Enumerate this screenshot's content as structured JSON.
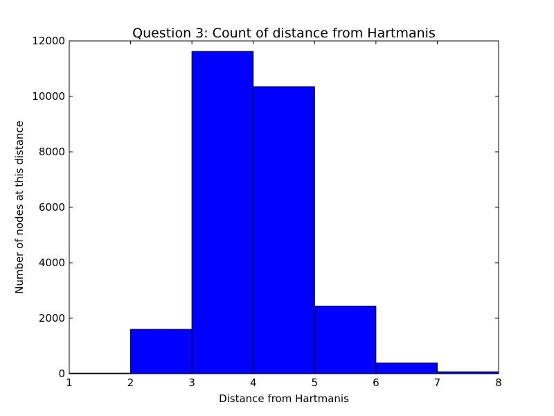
{
  "chart_data": {
    "type": "bar",
    "title": "Question 3:  Count of distance from Hartmanis",
    "xlabel": "Distance from Hartmanis",
    "ylabel": "Number of nodes at this distance",
    "xlim": [
      1,
      8
    ],
    "ylim": [
      0,
      12000
    ],
    "bins": [
      {
        "start": 1,
        "end": 2,
        "value": 20
      },
      {
        "start": 2,
        "end": 3,
        "value": 1600
      },
      {
        "start": 3,
        "end": 4,
        "value": 11620
      },
      {
        "start": 4,
        "end": 5,
        "value": 10350
      },
      {
        "start": 5,
        "end": 6,
        "value": 2440
      },
      {
        "start": 6,
        "end": 7,
        "value": 390
      },
      {
        "start": 7,
        "end": 8,
        "value": 70
      }
    ],
    "x_ticks": [
      "1",
      "2",
      "3",
      "4",
      "5",
      "6",
      "7",
      "8"
    ],
    "y_ticks": [
      "0",
      "2000",
      "4000",
      "6000",
      "8000",
      "10000",
      "12000"
    ],
    "bar_color": "#0000ff",
    "edge_color": "#000000",
    "grid": false,
    "legend": "none"
  }
}
